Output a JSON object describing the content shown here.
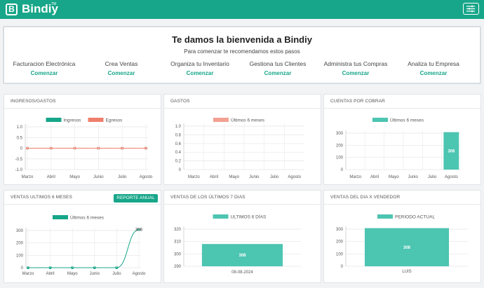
{
  "app": {
    "logo_letter": "B",
    "name": "Bindiy",
    "trademark": "TM"
  },
  "welcome": {
    "title": "Te damos la bienvenida a Bindiy",
    "subtitle": "Para comenzar te recomendamos estos pasos",
    "steps": [
      {
        "label": "Facturacion Electrónica",
        "link": "Comenzar"
      },
      {
        "label": "Crea Ventas",
        "link": "Comenzar"
      },
      {
        "label": "Organiza tu Inventario",
        "link": "Comenzar"
      },
      {
        "label": "Gestiona tus Clientes",
        "link": "Comenzar"
      },
      {
        "label": "Administra tus Compras",
        "link": "Comenzar"
      },
      {
        "label": "Analiza tu Empresa",
        "link": "Comenzar"
      }
    ]
  },
  "cards": {
    "ingresos": {
      "title": "INGRESOS/GASTOS"
    },
    "gastos": {
      "title": "GASTOS"
    },
    "cxc": {
      "title": "CUENTAS POR COBRAR"
    },
    "ventas6": {
      "title": "VENTAS ULTIMOS 6 MESES",
      "button": "REPORTE ANUAL"
    },
    "ventas7": {
      "title": "VENTAS DE LOS ÚLTIMOS 7 DIAS"
    },
    "ventasdia": {
      "title": "VENTAS DEL DIA X VENDEDOR"
    }
  },
  "chart_data": [
    {
      "id": "ingresos",
      "type": "line",
      "categories": [
        "Marzo",
        "Abril",
        "Mayo",
        "Junio",
        "Julio",
        "Agosto"
      ],
      "series": [
        {
          "name": "Ingresos",
          "values": [
            0,
            0,
            0,
            0,
            0,
            0
          ],
          "color": "#17a689"
        },
        {
          "name": "Egresos",
          "values": [
            0,
            0,
            0,
            0,
            0,
            0
          ],
          "color": "#ef7f6c"
        }
      ],
      "ylim": [
        -1.0,
        1.0
      ],
      "yticks": [
        "1.0",
        "0.5",
        "0",
        "-0.5",
        "-1.0"
      ],
      "legend": "top"
    },
    {
      "id": "gastos",
      "type": "bar",
      "categories": [
        "Marzo",
        "Abril",
        "Mayo",
        "Junio",
        "Julio",
        "Agosto"
      ],
      "series": [
        {
          "name": "Últimos 6 meses",
          "values": [
            0,
            0,
            0,
            0,
            0,
            0
          ],
          "color": "#f3a093"
        }
      ],
      "ylim": [
        0,
        1.0
      ],
      "yticks": [
        "1.0",
        "0.8",
        "0.6",
        "0.4",
        "0.2",
        "0"
      ],
      "legend": "top"
    },
    {
      "id": "cxc",
      "type": "bar",
      "categories": [
        "Marzo",
        "Abril",
        "Mayo",
        "Junio",
        "Julio",
        "Agosto"
      ],
      "series": [
        {
          "name": "Últimos 6 meses",
          "values": [
            0,
            0,
            0,
            0,
            0,
            308
          ],
          "color": "#4cc5b1"
        }
      ],
      "ylim": [
        0,
        300
      ],
      "yticks": [
        "300",
        "200",
        "100",
        "0"
      ],
      "data_labels": [
        "",
        "",
        "",
        "",
        "",
        "308"
      ],
      "legend": "top"
    },
    {
      "id": "ventas6",
      "type": "line",
      "categories": [
        "Marzo",
        "Abril",
        "Mayo",
        "Junio",
        "Julio",
        "Agosto"
      ],
      "series": [
        {
          "name": "Últimos 6 meses",
          "values": [
            0,
            0,
            0,
            0,
            0,
            308
          ],
          "color": "#17a689"
        }
      ],
      "ylim": [
        0,
        300
      ],
      "yticks": [
        "300",
        "200",
        "100",
        "0"
      ],
      "data_labels": [
        "",
        "",
        "",
        "",
        "",
        "308"
      ],
      "legend": "top"
    },
    {
      "id": "ventas7",
      "type": "bar",
      "categories": [
        "08-08-2024"
      ],
      "series": [
        {
          "name": "ULTIMOS 6 DÍAS",
          "values": [
            308
          ],
          "color": "#4cc5b1"
        }
      ],
      "ylim": [
        290,
        320
      ],
      "yticks": [
        "320",
        "310",
        "300",
        "290"
      ],
      "data_labels": [
        "308"
      ],
      "legend": "top"
    },
    {
      "id": "ventasdia",
      "type": "bar",
      "categories": [
        "LUIS"
      ],
      "series": [
        {
          "name": "PERIODO ACTUAL",
          "values": [
            308
          ],
          "color": "#4cc5b1"
        }
      ],
      "ylim": [
        0,
        300
      ],
      "yticks": [
        "300",
        "200",
        "100",
        "0"
      ],
      "data_labels": [
        "308"
      ],
      "legend": "top"
    }
  ]
}
